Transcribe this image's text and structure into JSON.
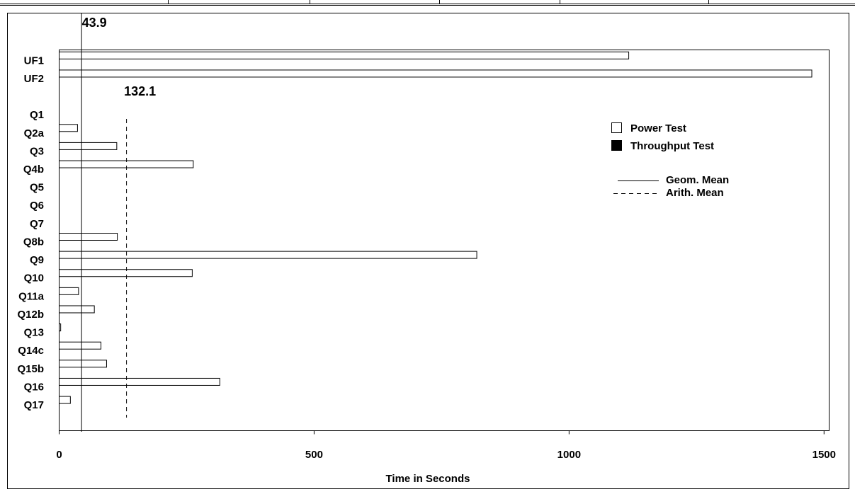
{
  "chart_data": {
    "type": "bar",
    "orientation": "horizontal",
    "categories": [
      "UF1",
      "UF2",
      null,
      "Q1",
      "Q2a",
      "Q3",
      "Q4b",
      "Q5",
      "Q6",
      "Q7",
      "Q8b",
      "Q9",
      "Q10",
      "Q11a",
      "Q12b",
      "Q13",
      "Q14c",
      "Q15b",
      "Q16",
      "Q17"
    ],
    "series": [
      {
        "name": "Power Test",
        "color": "#ffffff",
        "values": [
          1117,
          1476,
          null,
          0,
          36,
          113,
          263,
          0,
          0,
          0,
          114,
          819,
          261,
          38,
          69,
          3,
          82,
          93,
          315,
          22
        ]
      },
      {
        "name": "Throughput Test",
        "color": "#000000",
        "values": [
          null,
          null,
          null,
          null,
          null,
          null,
          null,
          null,
          null,
          null,
          null,
          null,
          null,
          null,
          null,
          null,
          null,
          null,
          null,
          null
        ]
      }
    ],
    "xlim": [
      0,
      1510
    ],
    "xticks": [
      0,
      500,
      1000,
      1500
    ],
    "x_label": "Time in Seconds",
    "reference_lines": [
      {
        "name": "Geom. Mean",
        "value": 43.9,
        "style": "solid"
      },
      {
        "name": "Arith. Mean",
        "value": 132.1,
        "style": "dashed"
      }
    ]
  }
}
